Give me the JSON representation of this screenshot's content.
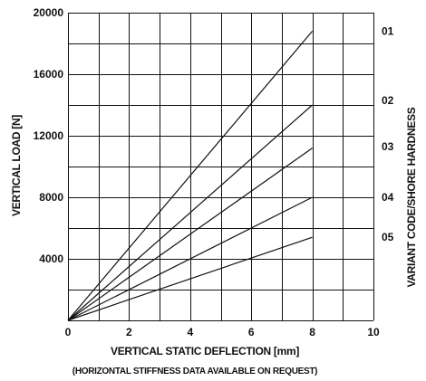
{
  "chart_data": {
    "type": "line",
    "xlabel": "VERTICAL STATIC DEFLECTION [mm]",
    "ylabel": "VERTICAL LOAD [N]",
    "right_label": "VARIANT CODE/SHORE HARDNESS",
    "note": "(HORIZONTAL STIFFNESS DATA AVAILABLE ON REQUEST)",
    "xlim": [
      0,
      10
    ],
    "ylim": [
      0,
      20000
    ],
    "x_ticks": [
      "0",
      "2",
      "4",
      "6",
      "8",
      "10"
    ],
    "y_ticks": [
      "4000",
      "8000",
      "12000",
      "16000",
      "20000"
    ],
    "grid": true,
    "series": [
      {
        "name": "01",
        "x": [
          0,
          8
        ],
        "y": [
          0,
          18800
        ]
      },
      {
        "name": "02",
        "x": [
          0,
          8
        ],
        "y": [
          0,
          14000
        ]
      },
      {
        "name": "03",
        "x": [
          0,
          8
        ],
        "y": [
          0,
          11200
        ]
      },
      {
        "name": "04",
        "x": [
          0,
          8
        ],
        "y": [
          0,
          8000
        ]
      },
      {
        "name": "05",
        "x": [
          0,
          8
        ],
        "y": [
          0,
          5400
        ]
      }
    ],
    "variant_labels": [
      {
        "text": "01",
        "y": 18800
      },
      {
        "text": "02",
        "y": 14300
      },
      {
        "text": "03",
        "y": 11300
      },
      {
        "text": "04",
        "y": 8000
      },
      {
        "text": "05",
        "y": 5400
      }
    ]
  }
}
